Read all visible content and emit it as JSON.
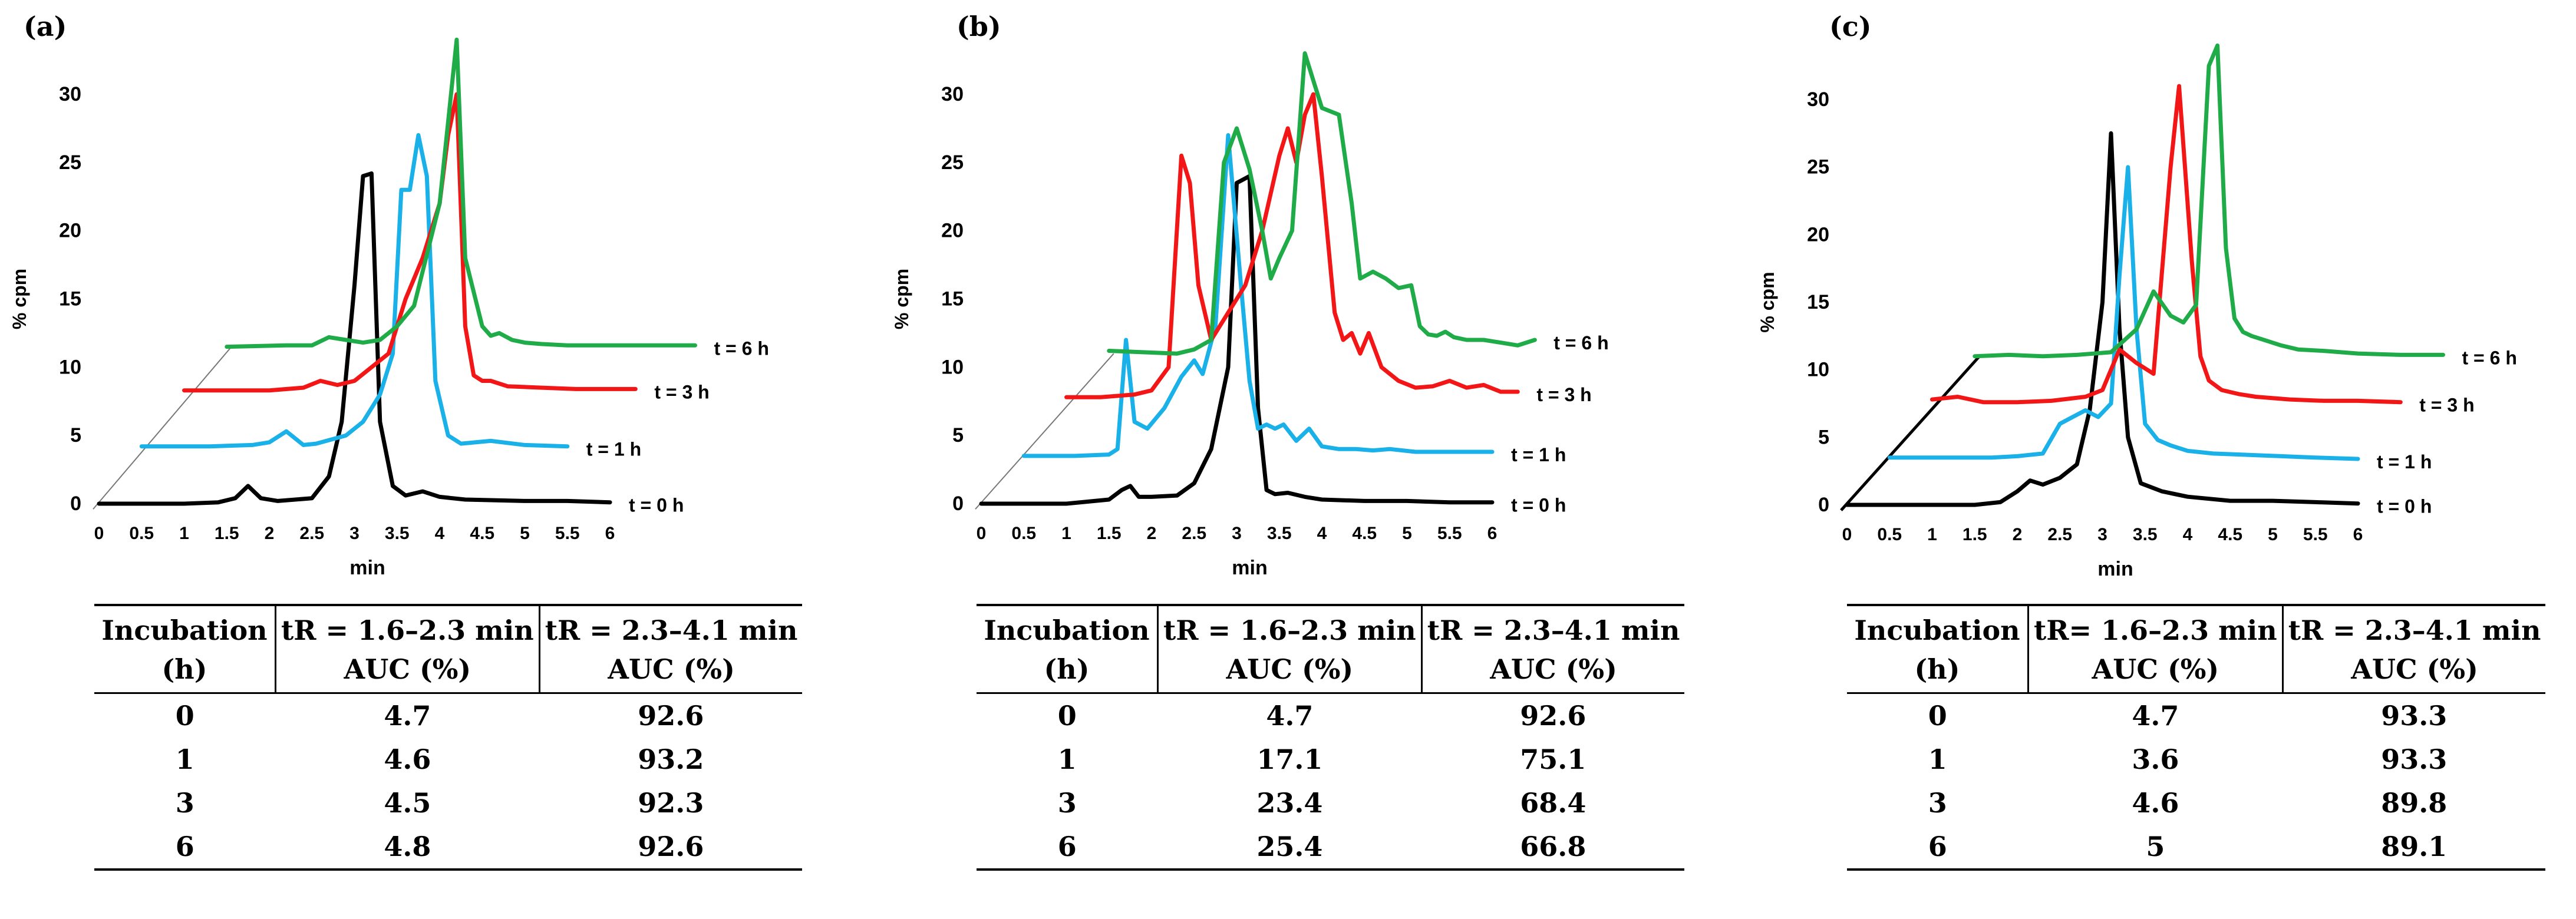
{
  "series_colors": {
    "t = 0 h": "#000000",
    "t = 1 h": "#1ab0e8",
    "t = 3 h": "#f21616",
    "t = 6 h": "#1fab48"
  },
  "panels": [
    {
      "label": "(a)",
      "chart_data": {
        "type": "line",
        "title": "(a)",
        "xlabel": "min",
        "ylabel": "% cpm",
        "xticks": [
          "0",
          "0.5",
          "1",
          "1.5",
          "2",
          "2.5",
          "3",
          "3.5",
          "4",
          "4.5",
          "5",
          "5.5",
          "6"
        ],
        "yticks": [
          "0",
          "5",
          "10",
          "15",
          "20",
          "25",
          "30"
        ],
        "ylim": [
          0,
          30
        ],
        "xlim": [
          0,
          6
        ],
        "depth_offset": {
          "dx_min": 1.5,
          "dy": 11.5
        },
        "series": [
          {
            "name": "t = 0 h",
            "offset": 0,
            "x": [
              0,
              0.5,
              1,
              1.4,
              1.6,
              1.75,
              1.9,
              2.1,
              2.5,
              2.7,
              2.85,
              3.0,
              3.1,
              3.2,
              3.3,
              3.45,
              3.6,
              3.8,
              4.0,
              4.3,
              5,
              5.5,
              6
            ],
            "y": [
              0,
              0,
              0,
              0.1,
              0.4,
              1.3,
              0.4,
              0.2,
              0.4,
              2,
              6,
              16,
              24,
              24.2,
              6,
              1.3,
              0.6,
              0.9,
              0.5,
              0.3,
              0.2,
              0.2,
              0.1
            ]
          },
          {
            "name": "t = 1 h",
            "offset": 0.5,
            "x": [
              0,
              0.8,
              1.3,
              1.5,
              1.7,
              1.9,
              2.05,
              2.4,
              2.6,
              2.8,
              2.95,
              3.05,
              3.15,
              3.25,
              3.35,
              3.45,
              3.6,
              3.75,
              4.1,
              4.5,
              5.0
            ],
            "y": [
              4.2,
              4.2,
              4.3,
              4.5,
              5.3,
              4.3,
              4.4,
              5,
              6,
              8,
              11,
              23,
              23,
              27,
              24,
              9,
              5,
              4.4,
              4.6,
              4.3,
              4.2
            ]
          },
          {
            "name": "t = 3 h",
            "offset": 1.0,
            "x": [
              0,
              1,
              1.4,
              1.6,
              1.8,
              2.0,
              2.4,
              2.6,
              2.8,
              3.0,
              3.1,
              3.2,
              3.3,
              3.4,
              3.5,
              3.6,
              3.8,
              4.2,
              4.6,
              5.0,
              5.3
            ],
            "y": [
              8.3,
              8.3,
              8.5,
              9,
              8.7,
              9,
              11,
              15,
              18,
              22,
              27,
              30,
              13,
              9.4,
              9,
              9,
              8.6,
              8.5,
              8.4,
              8.4,
              8.4
            ]
          },
          {
            "name": "t = 6 h",
            "offset": 1.5,
            "x": [
              0,
              0.7,
              1.0,
              1.2,
              1.4,
              1.6,
              1.8,
              2.0,
              2.2,
              2.5,
              2.7,
              2.8,
              3.0,
              3.1,
              3.2,
              3.35,
              3.5,
              3.7,
              4.0,
              4.5,
              5.0,
              5.5
            ],
            "y": [
              11.5,
              11.6,
              11.6,
              12.2,
              12,
              11.8,
              12,
              13,
              14.5,
              22,
              34,
              18,
              13,
              12.3,
              12.5,
              12,
              11.8,
              11.7,
              11.6,
              11.6,
              11.6,
              11.6
            ]
          }
        ]
      },
      "table": {
        "headers": [
          [
            "Incubation",
            "(h)"
          ],
          [
            "tR = 1.6–2.3 min",
            "AUC (%)"
          ],
          [
            "tR = 2.3–4.1 min",
            "AUC (%)"
          ]
        ],
        "rows": [
          [
            "0",
            "4.7",
            "92.6"
          ],
          [
            "1",
            "4.6",
            "93.2"
          ],
          [
            "3",
            "4.5",
            "92.3"
          ],
          [
            "6",
            "4.8",
            "92.6"
          ]
        ]
      }
    },
    {
      "label": "(b)",
      "chart_data": {
        "type": "line",
        "title": "(b)",
        "xlabel": "min",
        "ylabel": "% cpm",
        "xticks": [
          "0",
          "0.5",
          "1",
          "1.5",
          "2",
          "2.5",
          "3",
          "3.5",
          "4",
          "4.5",
          "5",
          "5.5",
          "6"
        ],
        "yticks": [
          "0",
          "5",
          "10",
          "15",
          "20",
          "25",
          "30"
        ],
        "ylim": [
          0,
          30
        ],
        "xlim": [
          0,
          6
        ],
        "depth_offset": {
          "dx_min": 1.5,
          "dy": 11
        },
        "series": [
          {
            "name": "t = 0 h",
            "offset": 0,
            "x": [
              0,
              0.5,
              1,
              1.5,
              1.65,
              1.75,
              1.85,
              2.0,
              2.3,
              2.5,
              2.7,
              2.9,
              3.0,
              3.15,
              3.25,
              3.35,
              3.45,
              3.6,
              3.8,
              4.0,
              4.5,
              5,
              5.5,
              6
            ],
            "y": [
              0,
              0,
              0,
              0.3,
              1,
              1.3,
              0.5,
              0.5,
              0.6,
              1.5,
              4,
              10,
              23.5,
              24,
              7,
              1,
              0.7,
              0.8,
              0.5,
              0.3,
              0.2,
              0.2,
              0.1,
              0.1
            ]
          },
          {
            "name": "t = 1 h",
            "offset": 0.5,
            "x": [
              0,
              0.6,
              1.0,
              1.1,
              1.2,
              1.3,
              1.45,
              1.65,
              1.85,
              2.0,
              2.1,
              2.25,
              2.4,
              2.55,
              2.65,
              2.75,
              2.85,
              2.95,
              3.05,
              3.2,
              3.35,
              3.5,
              3.7,
              3.9,
              4.1,
              4.3,
              4.6,
              5.0,
              5.5
            ],
            "y": [
              3.5,
              3.5,
              3.6,
              4,
              12,
              6,
              5.5,
              7,
              9.3,
              10.5,
              9.5,
              13,
              27,
              16,
              9,
              5.5,
              5.8,
              5.5,
              5.8,
              4.6,
              5.5,
              4.2,
              4,
              4,
              3.9,
              4,
              3.8,
              3.8,
              3.8
            ]
          },
          {
            "name": "t = 3 h",
            "offset": 1.0,
            "x": [
              0,
              0.4,
              0.8,
              1.0,
              1.2,
              1.35,
              1.45,
              1.55,
              1.7,
              1.9,
              2.1,
              2.3,
              2.5,
              2.6,
              2.7,
              2.8,
              2.9,
              3.0,
              3.15,
              3.25,
              3.35,
              3.45,
              3.55,
              3.7,
              3.9,
              4.1,
              4.3,
              4.5,
              4.7,
              4.9,
              5.1,
              5.3
            ],
            "y": [
              7.8,
              7.8,
              8,
              8.3,
              10,
              25.5,
              23.5,
              16,
              12,
              14,
              16,
              20,
              25.5,
              27.5,
              25,
              28.5,
              30,
              24,
              14,
              12,
              12.5,
              11,
              12.5,
              10,
              9,
              8.5,
              8.6,
              9,
              8.5,
              8.7,
              8.2,
              8.2
            ]
          },
          {
            "name": "t = 6 h",
            "offset": 1.5,
            "x": [
              0,
              0.4,
              0.8,
              1.0,
              1.2,
              1.35,
              1.5,
              1.65,
              1.8,
              1.9,
              2.0,
              2.15,
              2.3,
              2.5,
              2.7,
              2.85,
              2.95,
              3.1,
              3.25,
              3.4,
              3.55,
              3.65,
              3.75,
              3.85,
              3.95,
              4.05,
              4.2,
              4.4,
              4.6,
              4.8,
              5.0
            ],
            "y": [
              11.2,
              11.1,
              11,
              11.3,
              12,
              25,
              27.5,
              24.5,
              20,
              16.5,
              18,
              20,
              33,
              29,
              28.5,
              22,
              16.5,
              17,
              16.5,
              15.8,
              16,
              13,
              12.4,
              12.3,
              12.6,
              12.2,
              12,
              12,
              11.8,
              11.6,
              12
            ]
          }
        ]
      },
      "table": {
        "headers": [
          [
            "Incubation",
            "(h)"
          ],
          [
            "tR = 1.6–2.3 min",
            "AUC (%)"
          ],
          [
            "tR = 2.3–4.1 min",
            "AUC (%)"
          ]
        ],
        "rows": [
          [
            "0",
            "4.7",
            "92.6"
          ],
          [
            "1",
            "17.1",
            "75.1"
          ],
          [
            "3",
            "23.4",
            "68.4"
          ],
          [
            "6",
            "25.4",
            "66.8"
          ]
        ]
      }
    },
    {
      "label": "(c)",
      "chart_data": {
        "type": "line",
        "title": "(c)",
        "xlabel": "min",
        "ylabel": "% cpm",
        "xticks": [
          "0",
          "0.5",
          "1",
          "1.5",
          "2",
          "2.5",
          "3",
          "3.5",
          "4",
          "4.5",
          "5",
          "5.5",
          "6"
        ],
        "yticks": [
          "0",
          "5",
          "10",
          "15",
          "20",
          "25",
          "30"
        ],
        "ylim": [
          0,
          30
        ],
        "xlim": [
          0,
          6
        ],
        "depth_offset": {
          "dx_min": 1.5,
          "dy": 11
        },
        "series": [
          {
            "name": "t = 0 h",
            "offset": 0,
            "x": [
              0,
              0.5,
              1,
              1.5,
              1.8,
              2.0,
              2.15,
              2.3,
              2.5,
              2.7,
              2.85,
              3.0,
              3.1,
              3.2,
              3.3,
              3.45,
              3.7,
              4.0,
              4.5,
              5,
              5.5,
              6
            ],
            "y": [
              0,
              0,
              0,
              0,
              0.2,
              1,
              1.8,
              1.5,
              2,
              3,
              7,
              15,
              27.5,
              13,
              5,
              1.6,
              1,
              0.6,
              0.3,
              0.3,
              0.2,
              0.1
            ]
          },
          {
            "name": "t = 1 h",
            "offset": 0.5,
            "x": [
              0,
              0.8,
              1.2,
              1.5,
              1.8,
              2.0,
              2.15,
              2.3,
              2.45,
              2.6,
              2.7,
              2.8,
              2.9,
              3.0,
              3.15,
              3.3,
              3.5,
              3.8,
              4.2,
              4.6,
              5.0,
              5.5
            ],
            "y": [
              3.5,
              3.5,
              3.5,
              3.6,
              3.8,
              6,
              6.5,
              7,
              6.5,
              7.5,
              17,
              25,
              13,
              6,
              4.8,
              4.4,
              4,
              3.8,
              3.7,
              3.6,
              3.5,
              3.4
            ]
          },
          {
            "name": "t = 3 h",
            "offset": 1.0,
            "x": [
              0,
              0.3,
              0.6,
              1.0,
              1.4,
              1.8,
              2.0,
              2.2,
              2.4,
              2.6,
              2.8,
              2.9,
              3.05,
              3.15,
              3.25,
              3.4,
              3.6,
              3.8,
              4.2,
              4.6,
              5.0,
              5.5
            ],
            "y": [
              7.8,
              8,
              7.6,
              7.6,
              7.7,
              8,
              8.5,
              11.5,
              10.5,
              9.7,
              25,
              31,
              18,
              11,
              9.2,
              8.5,
              8.2,
              8,
              7.8,
              7.7,
              7.7,
              7.6
            ]
          },
          {
            "name": "t = 6 h",
            "offset": 1.5,
            "x": [
              0,
              0.4,
              0.8,
              1.2,
              1.6,
              1.9,
              2.1,
              2.3,
              2.45,
              2.6,
              2.75,
              2.85,
              2.95,
              3.05,
              3.15,
              3.25,
              3.4,
              3.6,
              3.8,
              4.1,
              4.5,
              5.0,
              5.5
            ],
            "y": [
              11,
              11.1,
              11,
              11.1,
              11.3,
              13,
              15.8,
              14,
              13.5,
              14.8,
              32.5,
              34,
              19,
              13.8,
              12.8,
              12.5,
              12.2,
              11.8,
              11.5,
              11.4,
              11.2,
              11.1,
              11.1
            ]
          }
        ]
      },
      "table": {
        "headers": [
          [
            "Incubation",
            "(h)"
          ],
          [
            "tR= 1.6–2.3 min",
            "AUC (%)"
          ],
          [
            "tR = 2.3–4.1 min",
            "AUC (%)"
          ]
        ],
        "rows": [
          [
            "0",
            "4.7",
            "93.3"
          ],
          [
            "1",
            "3.6",
            "93.3"
          ],
          [
            "3",
            "4.6",
            "89.8"
          ],
          [
            "6",
            "5",
            "89.1"
          ]
        ]
      }
    }
  ]
}
